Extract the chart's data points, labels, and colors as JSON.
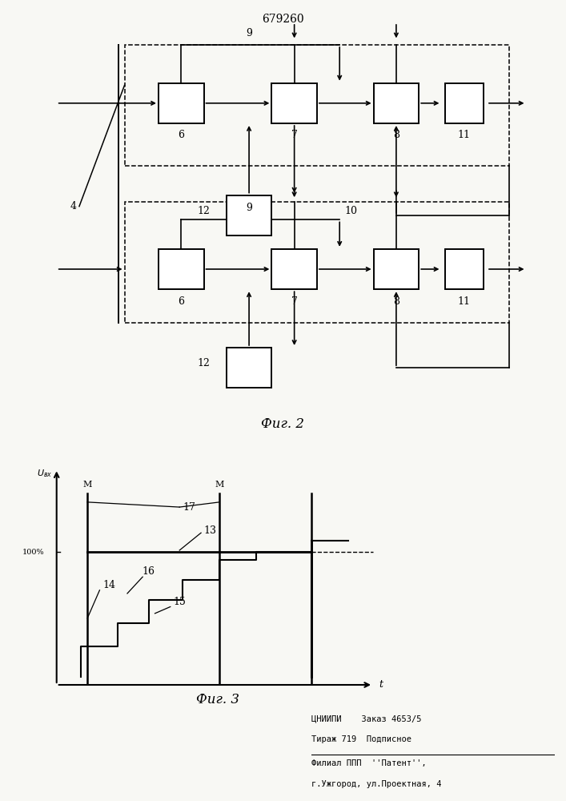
{
  "title": "679260",
  "fig2_label": "Фиг. 2",
  "fig3_label": "Фиг. 3",
  "footer_line1": "ЦНИИПИ    Заказ 4653/5",
  "footer_line2": "Тираж 719  Подписное",
  "footer_line3": "Филиал ППП  ''Патент'',",
  "footer_line4": "г.Ужгород, ул.Проектная, 4",
  "bg_color": "#f8f8f4",
  "box_color": "#000000",
  "line_color": "#000000"
}
